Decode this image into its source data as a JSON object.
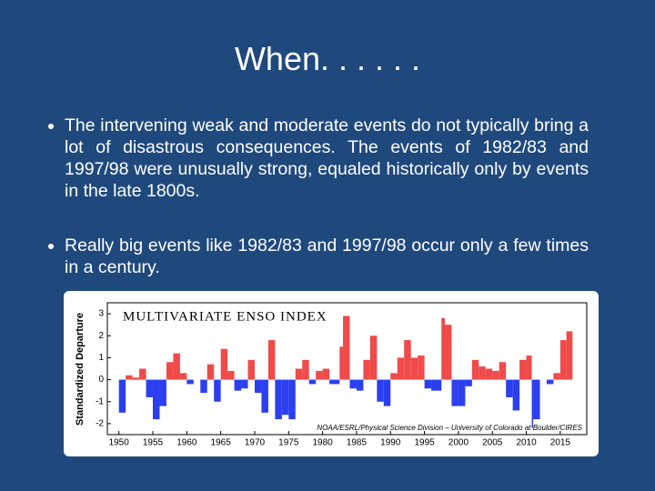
{
  "slide": {
    "title": "When. . . . . .",
    "bullets": [
      "The intervening weak and moderate events do not typically bring a lot of disastrous consequences. The events of 1982/83 and 1997/98 were unusually strong, equaled historically only by events in the late 1800s.",
      "Really big events like 1982/83 and 1997/98 occur only a few times in a century."
    ]
  },
  "chart_data": {
    "type": "area",
    "title": "MULTIVARIATE ENSO INDEX",
    "y_label": "Standardized Departure",
    "credit": "NOAA/ESRL/Physical Science Division – University of Colorado at Boulder/CIRES",
    "positive_color": "#f04a4a",
    "negative_color": "#2b3ff0",
    "x": [
      1950,
      1951,
      1952,
      1953,
      1954,
      1955,
      1956,
      1957,
      1958,
      1959,
      1960,
      1961,
      1962,
      1963,
      1964,
      1965,
      1966,
      1967,
      1968,
      1969,
      1970,
      1971,
      1972,
      1973,
      1974,
      1975,
      1976,
      1977,
      1978,
      1979,
      1980,
      1981,
      1982.5,
      1983,
      1984,
      1985,
      1986,
      1987,
      1988,
      1989,
      1990,
      1991,
      1992,
      1993,
      1994,
      1995,
      1996,
      1997.5,
      1998,
      1999,
      2000,
      2001,
      2002,
      2003,
      2004,
      2005,
      2006,
      2007,
      2008,
      2009,
      2010,
      2010.8,
      2011,
      2012,
      2013,
      2014,
      2015,
      2015.9
    ],
    "values": [
      -1.5,
      0.2,
      0.1,
      0.5,
      -0.8,
      -1.8,
      -1.2,
      0.8,
      1.2,
      0.3,
      -0.2,
      0.0,
      -0.6,
      0.7,
      -1.0,
      1.4,
      0.4,
      -0.5,
      -0.4,
      0.9,
      -0.6,
      -1.5,
      1.8,
      -1.8,
      -1.6,
      -1.8,
      0.5,
      0.9,
      -0.2,
      0.4,
      0.5,
      -0.2,
      1.5,
      2.9,
      -0.4,
      -0.5,
      0.9,
      2.0,
      -1.0,
      -1.2,
      0.3,
      1.0,
      1.8,
      1.0,
      1.1,
      -0.4,
      -0.5,
      2.8,
      2.5,
      -1.2,
      -1.2,
      -0.3,
      0.9,
      0.6,
      0.5,
      0.4,
      0.8,
      -0.8,
      -1.4,
      0.9,
      1.1,
      -2.2,
      -1.8,
      0.0,
      -0.2,
      0.3,
      1.8,
      2.2
    ],
    "xlim": [
      1948.3,
      2018.9
    ],
    "ylim": [
      -2.5,
      3.5
    ],
    "xticks": [
      1950,
      1955,
      1960,
      1965,
      1970,
      1975,
      1980,
      1985,
      1990,
      1995,
      2000,
      2005,
      2010,
      2015
    ],
    "yticks": [
      -2,
      -1,
      0,
      1,
      2,
      3
    ]
  }
}
